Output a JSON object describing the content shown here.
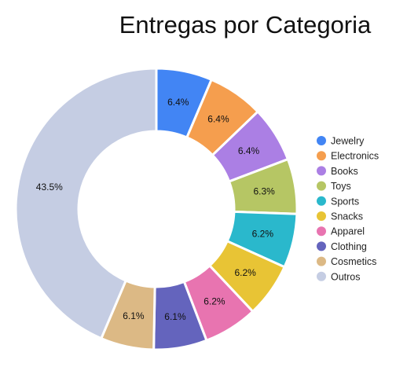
{
  "chart_data": {
    "type": "pie",
    "variant": "donut",
    "title": "Entregas por Categoria",
    "legend_position": "right",
    "categories": [
      "Jewelry",
      "Electronics",
      "Books",
      "Toys",
      "Sports",
      "Snacks",
      "Apparel",
      "Clothing",
      "Cosmetics",
      "Outros"
    ],
    "values": [
      6.4,
      6.4,
      6.4,
      6.3,
      6.2,
      6.2,
      6.2,
      6.1,
      6.1,
      43.5
    ],
    "labels": [
      "6.4%",
      "6.4%",
      "6.4%",
      "6.3%",
      "6.2%",
      "6.2%",
      "6.2%",
      "6.1%",
      "6.1%",
      "43.5%"
    ],
    "colors": [
      "#4285f4",
      "#f59e4e",
      "#ab7fe4",
      "#b6c664",
      "#2ab8cc",
      "#e8c435",
      "#e874b0",
      "#6464bd",
      "#dcb985",
      "#c5cde3"
    ]
  }
}
